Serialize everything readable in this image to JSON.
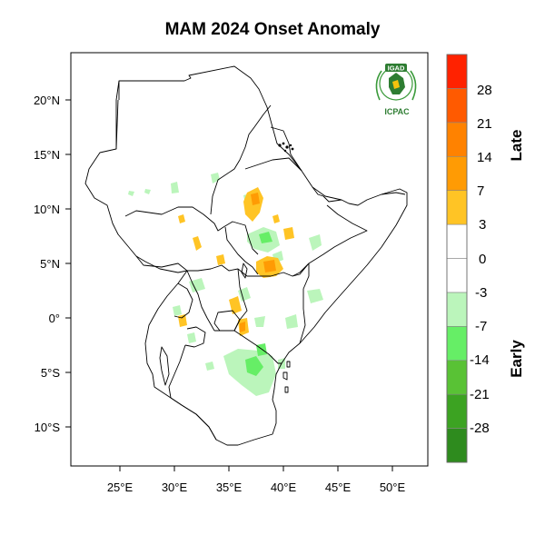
{
  "title": "MAM 2024 Onset Anomaly",
  "map": {
    "lon_ticks": [
      "25°E",
      "30°E",
      "35°E",
      "40°E",
      "45°E",
      "50°E"
    ],
    "lat_ticks": [
      "20°N",
      "15°N",
      "10°N",
      "5°N",
      "0°",
      "5°S",
      "10°S"
    ]
  },
  "logo": {
    "badge_text": "IGAD",
    "org_text": "ICPAC"
  },
  "colorbar": {
    "labels": [
      "28",
      "21",
      "14",
      "7",
      "3",
      "0",
      "-3",
      "-7",
      "-14",
      "-21",
      "-28"
    ],
    "colors": [
      "#2e8b1e",
      "#3ca322",
      "#59c235",
      "#66ee66",
      "#bbf5bb",
      "#ffffff",
      "#ffffff",
      "#ffc425",
      "#ff9b04",
      "#ff8200",
      "#ff5a00",
      "#ff2200"
    ],
    "late_label": "Late",
    "early_label": "Early"
  },
  "anomaly_colors": {
    "early_light": "#bbf5bb",
    "early_mid": "#66ee66",
    "late_light": "#ffc425",
    "late_mid": "#ff9b04"
  }
}
